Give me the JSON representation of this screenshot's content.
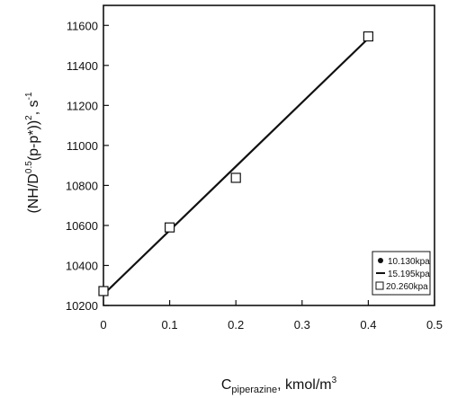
{
  "chart_data": {
    "type": "scatter",
    "xlabel": {
      "main": "C",
      "sub": "piperazine",
      "rest": ", kmol/m",
      "sup": "3"
    },
    "ylabel": {
      "pre": "(NH/D",
      "sup1": "0.5",
      "mid": "(p-p*))",
      "sup2": "2",
      "rest": ", s",
      "sup3": "-1"
    },
    "xlim": [
      0,
      0.5
    ],
    "ylim": [
      10200,
      11700
    ],
    "xticks": [
      0,
      0.1,
      0.2,
      0.3,
      0.4,
      0.5
    ],
    "xtick_labels": [
      "0",
      "0.1",
      "0.2",
      "0.3",
      "0.4",
      "0.5"
    ],
    "yticks": [
      10200,
      10400,
      10600,
      10800,
      11000,
      11200,
      11400,
      11600
    ],
    "ytick_labels": [
      "10200",
      "10400",
      "10600",
      "10800",
      "11000",
      "11200",
      "11400",
      "11600"
    ],
    "grid": false,
    "legend_position": "bottom-right",
    "series": [
      {
        "name": "10.130kpa",
        "marker": "filled-circle",
        "x": [
          0,
          0.1,
          0.2,
          0.4
        ],
        "y": [
          10270,
          10585,
          10838,
          11540
        ]
      },
      {
        "name": "15.195kpa",
        "marker": "dash",
        "x": [
          0,
          0.1,
          0.2,
          0.4
        ],
        "y": [
          10270,
          10588,
          10835,
          11543
        ]
      },
      {
        "name": "20.260kpa",
        "marker": "open-square",
        "x": [
          0,
          0.1,
          0.2,
          0.4
        ],
        "y": [
          10272,
          10590,
          10838,
          11545
        ]
      }
    ],
    "fit_line": {
      "x": [
        0,
        0.4
      ],
      "y": [
        10255,
        11535
      ]
    }
  }
}
